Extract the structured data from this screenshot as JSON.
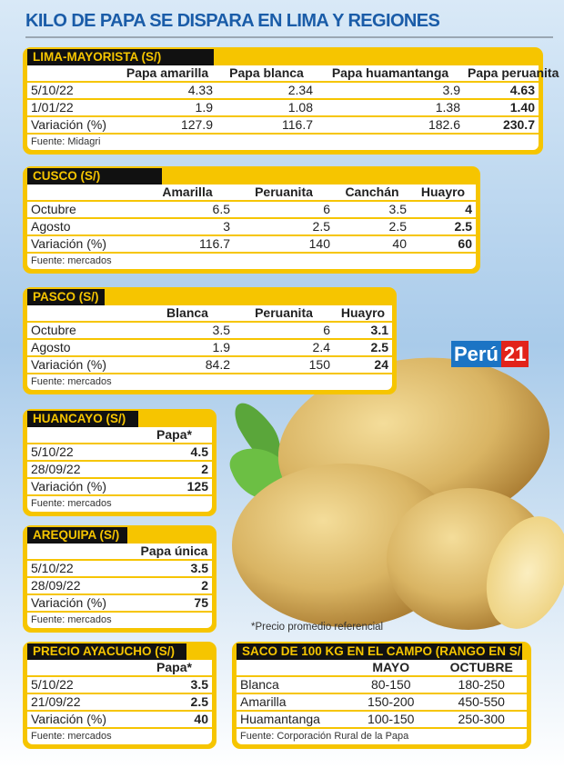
{
  "title": "KILO DE PAPA SE DISPARA EN LIMA Y REGIONES",
  "brand": {
    "name": "Perú",
    "number": "21"
  },
  "note": "*Precio promedio referencial",
  "tables": [
    {
      "title": "LIMA-MAYORISTA (S/)",
      "headers": [
        "Papa amarilla",
        "Papa blanca",
        "Papa huamantanga",
        "Papa peruanita"
      ],
      "rows": [
        [
          "5/10/22",
          "4.33",
          "2.34",
          "3.9",
          "4.63"
        ],
        [
          "1/01/22",
          "1.9",
          "1.08",
          "1.38",
          "1.40"
        ],
        [
          "Variación (%)",
          "127.9",
          "116.7",
          "182.6",
          "230.7"
        ]
      ],
      "source": "Fuente: Midagri"
    },
    {
      "title": "CUSCO (S/)",
      "headers": [
        "Amarilla",
        "Peruanita",
        "Canchán",
        "Huayro"
      ],
      "rows": [
        [
          "Octubre",
          "6.5",
          "6",
          "3.5",
          "4"
        ],
        [
          "Agosto",
          "3",
          "2.5",
          "2.5",
          "2.5"
        ],
        [
          "Variación (%)",
          "116.7",
          "140",
          "40",
          "60"
        ]
      ],
      "source": "Fuente: mercados"
    },
    {
      "title": "PASCO (S/)",
      "headers": [
        "Blanca",
        "Peruanita",
        "Huayro"
      ],
      "rows": [
        [
          "Octubre",
          "3.5",
          "6",
          "3.1"
        ],
        [
          "Agosto",
          "1.9",
          "2.4",
          "2.5"
        ],
        [
          "Variación (%)",
          "84.2",
          "150",
          "24"
        ]
      ],
      "source": "Fuente: mercados"
    },
    {
      "title": "HUANCAYO (S/)",
      "headers": [
        "Papa*"
      ],
      "rows": [
        [
          "5/10/22",
          "4.5"
        ],
        [
          "28/09/22",
          "2"
        ],
        [
          "Variación (%)",
          "125"
        ]
      ],
      "source": "Fuente: mercados"
    },
    {
      "title": "AREQUIPA (S/)",
      "headers": [
        "Papa única"
      ],
      "rows": [
        [
          "5/10/22",
          "3.5"
        ],
        [
          "28/09/22",
          "2"
        ],
        [
          "Variación (%)",
          "75"
        ]
      ],
      "source": "Fuente: mercados"
    },
    {
      "title": "PRECIO AYACUCHO (S/)",
      "headers": [
        "Papa*"
      ],
      "rows": [
        [
          "5/10/22",
          "3.5"
        ],
        [
          "21/09/22",
          "2.5"
        ],
        [
          "Variación (%)",
          "40"
        ]
      ],
      "source": "Fuente: mercados"
    },
    {
      "title": "SACO DE 100 KG EN EL CAMPO (RANGO EN S/",
      "headers": [
        "MAYO",
        "OCTUBRE"
      ],
      "rows": [
        [
          "Blanca",
          "80-150",
          "180-250"
        ],
        [
          "Amarilla",
          "150-200",
          "450-550"
        ],
        [
          "Huamantanga",
          "100-150",
          "250-300"
        ]
      ],
      "source": "Fuente: Corporación Rural de la Papa"
    }
  ]
}
